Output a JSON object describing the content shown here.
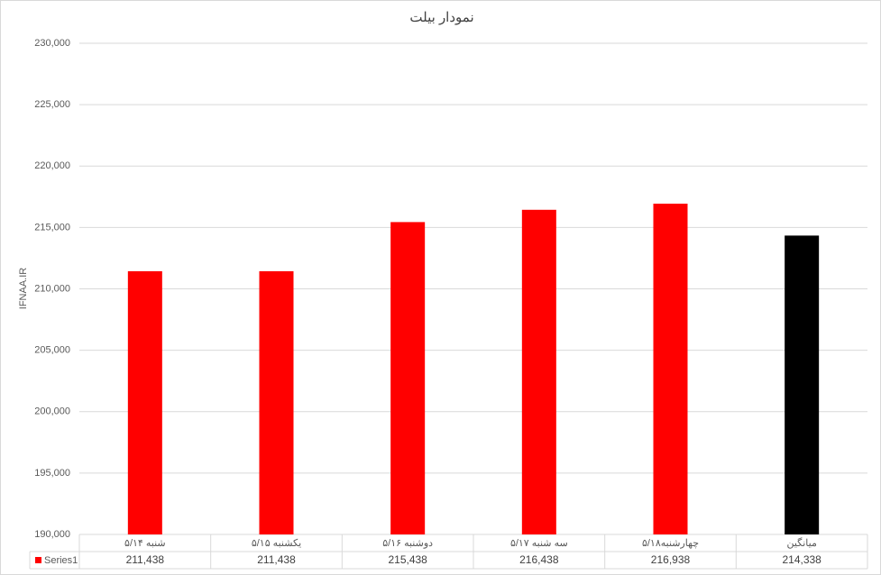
{
  "chart_data": {
    "type": "bar",
    "title": "نمودار بیلت",
    "y_label": "IFNAA.IR",
    "categories": [
      "شنبه ۵/۱۴",
      "یکشنبه ۵/۱۵",
      "دوشنبه ۵/۱۶",
      "سه شنبه ۵/۱۷",
      "چهارشنبه۵/۱۸",
      "میانگین"
    ],
    "series": [
      {
        "name": "Series1",
        "color": "#ff0000",
        "colors": [
          "#ff0000",
          "#ff0000",
          "#ff0000",
          "#ff0000",
          "#ff0000",
          "#000000"
        ],
        "values": [
          211438,
          211438,
          215438,
          216438,
          216938,
          214338
        ],
        "value_labels": [
          "211,438",
          "211,438",
          "215,438",
          "216,438",
          "216,938",
          "214,338"
        ]
      }
    ],
    "ylim": [
      190000,
      230000
    ],
    "yticks": [
      {
        "value": 190000,
        "label": "190,000"
      },
      {
        "value": 195000,
        "label": "195,000"
      },
      {
        "value": 200000,
        "label": "200,000"
      },
      {
        "value": 205000,
        "label": "205,000"
      },
      {
        "value": 210000,
        "label": "210,000"
      },
      {
        "value": 215000,
        "label": "215,000"
      },
      {
        "value": 220000,
        "label": "220,000"
      },
      {
        "value": 225000,
        "label": "225,000"
      },
      {
        "value": 230000,
        "label": "230,000"
      }
    ],
    "grid": true
  }
}
